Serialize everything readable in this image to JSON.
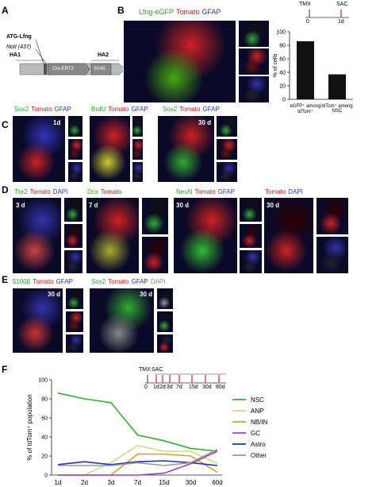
{
  "figure": {
    "panel_letters": [
      "A",
      "B",
      "C",
      "D",
      "E",
      "F"
    ],
    "a_diagram": {
      "atg": "ATG-Lfng",
      "noti": "NotI (437)",
      "ha1": "HA1",
      "cre": "Cre-ERT2",
      "sv40": "SV40",
      "ha2": "HA2"
    },
    "image_labels": [
      [
        {
          "text": "Lfng-eGFP",
          "color": "#22aa22"
        },
        {
          "text": "Tomato",
          "color": "#dd1111"
        },
        {
          "text": "GFAP",
          "color": "#2233cc"
        }
      ],
      [
        {
          "text": "Sox2",
          "color": "#22aa22"
        },
        {
          "text": "Tomato",
          "color": "#dd1111"
        },
        {
          "text": "GFAP",
          "color": "#2233cc"
        }
      ],
      [
        {
          "text": "BrdU",
          "color": "#22aa22"
        },
        {
          "text": "Tomato",
          "color": "#dd1111"
        },
        {
          "text": "GFAP",
          "color": "#2233cc"
        }
      ],
      [
        {
          "text": "Sox2",
          "color": "#22aa22"
        },
        {
          "text": "Tomato",
          "color": "#dd1111"
        },
        {
          "text": "GFAP",
          "color": "#2233cc"
        }
      ],
      [
        {
          "text": "Tbr2",
          "color": "#22aa22"
        },
        {
          "text": "Tomato",
          "color": "#dd1111"
        },
        {
          "text": "DAPI",
          "color": "#2233cc"
        }
      ],
      [
        {
          "text": "Dcx",
          "color": "#22aa22"
        },
        {
          "text": "Tomato",
          "color": "#dd1111"
        }
      ],
      [
        {
          "text": "NeuN",
          "color": "#22aa22"
        },
        {
          "text": "Tomato",
          "color": "#dd1111"
        },
        {
          "text": "GFAP",
          "color": "#2233cc"
        }
      ],
      [
        {
          "text": "Tomato",
          "color": "#dd1111"
        },
        {
          "text": "DAPI",
          "color": "#2233cc"
        }
      ],
      [
        {
          "text": "S100β",
          "color": "#22aa22"
        },
        {
          "text": "Tomato",
          "color": "#dd1111"
        },
        {
          "text": "GFAP",
          "color": "#2233cc"
        }
      ],
      [
        {
          "text": "Sox2",
          "color": "#22aa22"
        },
        {
          "text": "Tomato",
          "color": "#dd1111"
        },
        {
          "text": "GFAP",
          "color": "#2233cc"
        },
        {
          "text": "DAPI",
          "color": "#888888"
        }
      ]
    ],
    "time_labels": [
      "1d",
      "30 d",
      "3 d",
      "7 d",
      "30 d",
      "30 d",
      "30 d",
      "30 d"
    ]
  },
  "chart_data": [
    {
      "type": "bar",
      "y_label": "% of cells",
      "categories": [
        "eGFP⁺ among tdTom⁺",
        "tdTom⁺ among NSC"
      ],
      "values": [
        86,
        37
      ],
      "color": "#111111",
      "ylim": [
        0,
        100
      ],
      "yticks": [
        0,
        20,
        40,
        60,
        80,
        100
      ],
      "timeline": {
        "labels": [
          "TMX",
          "SAC"
        ],
        "times": [
          "0",
          "1d"
        ]
      }
    },
    {
      "type": "line",
      "y_label": "% of tdTom⁺ population",
      "categories": [
        "1d",
        "2d",
        "3d",
        "7d",
        "15d",
        "30d",
        "60d"
      ],
      "ylim": [
        0,
        100
      ],
      "yticks": [
        0,
        20,
        40,
        60,
        80,
        100
      ],
      "series": [
        {
          "name": "NSC",
          "color": "#2db52d",
          "values": [
            86,
            80,
            76,
            42,
            36,
            28,
            25
          ]
        },
        {
          "name": "ANP",
          "color": "#c8e07a",
          "values": [
            0,
            0,
            13,
            31,
            25,
            25,
            12
          ]
        },
        {
          "name": "NB/IN",
          "color": "#e0a020",
          "values": [
            0,
            0,
            0,
            22,
            22,
            20,
            3
          ]
        },
        {
          "name": "GC",
          "color": "#a040c0",
          "values": [
            0,
            0,
            0,
            0,
            2,
            12,
            25
          ]
        },
        {
          "name": "Astro",
          "color": "#2030c0",
          "values": [
            11,
            14,
            11,
            14,
            15,
            13,
            10
          ]
        },
        {
          "name": "Other",
          "color": "#999999",
          "values": [
            10,
            10,
            10,
            13,
            10,
            13,
            27
          ]
        }
      ],
      "timeline": {
        "labels": [
          "TMX",
          "SAC"
        ],
        "times": [
          "0",
          "1d",
          "2d",
          "3d",
          "7d",
          "15d",
          "30d",
          "60d"
        ]
      }
    }
  ]
}
